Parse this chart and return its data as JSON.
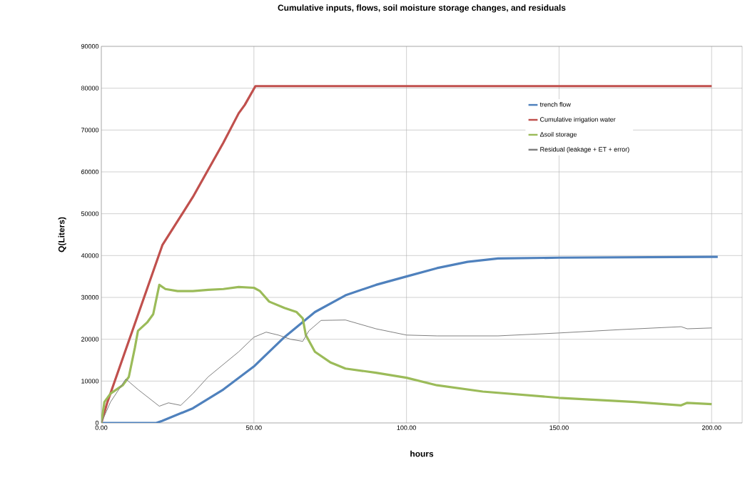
{
  "chart_data": {
    "type": "line",
    "title": "Cumulative inputs, flows, soil moisture storage changes, and residuals",
    "xlabel": "hours",
    "ylabel": "Q(Liters)",
    "xlim": [
      0,
      210
    ],
    "ylim": [
      0,
      90000
    ],
    "xticks": [
      {
        "value": 0,
        "label": "0.00"
      },
      {
        "value": 50,
        "label": "50.00"
      },
      {
        "value": 100,
        "label": "100.00"
      },
      {
        "value": 150,
        "label": "150.00"
      },
      {
        "value": 200,
        "label": "200.00"
      }
    ],
    "yticks": [
      0,
      10000,
      20000,
      30000,
      40000,
      50000,
      60000,
      70000,
      80000,
      90000
    ],
    "grid": true,
    "legend": "top right",
    "marker": "none",
    "line_style": "solid",
    "series": [
      {
        "name": "trench flow",
        "color": "#4f81bd",
        "x": [
          0,
          18,
          20,
          30,
          40,
          50,
          60,
          70,
          80,
          90,
          100,
          110,
          120,
          130,
          150,
          200,
          202
        ],
        "values": [
          0,
          0,
          500,
          3500,
          8000,
          13500,
          20500,
          26500,
          30500,
          33000,
          35000,
          37000,
          38500,
          39300,
          39500,
          39700,
          39700
        ]
      },
      {
        "name": "Cumulative irrigation water",
        "color": "#c0504d",
        "x": [
          0,
          2,
          20,
          30,
          40,
          45,
          47,
          50.5,
          200
        ],
        "values": [
          0,
          5000,
          42500,
          54000,
          67000,
          74000,
          76000,
          80500,
          80500
        ]
      },
      {
        "name": "Δsoil storage",
        "color": "#9bbb59",
        "x": [
          0,
          1,
          3,
          7,
          9,
          11,
          12,
          15,
          17,
          19,
          21,
          25,
          30,
          35,
          40,
          45,
          50,
          52,
          55,
          60,
          64,
          66,
          67,
          70,
          75,
          80,
          90,
          100,
          110,
          125,
          150,
          175,
          190,
          192,
          200
        ],
        "values": [
          0,
          5000,
          7000,
          9000,
          11000,
          18000,
          22000,
          24000,
          26000,
          33000,
          32000,
          31500,
          31500,
          31800,
          32000,
          32500,
          32300,
          31500,
          29000,
          27500,
          26500,
          25000,
          21000,
          17000,
          14500,
          13000,
          12000,
          10800,
          9000,
          7500,
          6000,
          5000,
          4200,
          4800,
          4500
        ]
      },
      {
        "name": "Residual (leakage + ET + error)",
        "color": "#7f7f7f",
        "x": [
          0,
          3,
          8,
          12,
          19,
          22,
          26,
          30,
          35,
          40,
          45,
          50,
          54,
          58,
          62,
          66,
          68,
          72,
          80,
          90,
          100,
          110,
          130,
          150,
          170,
          190,
          192,
          200
        ],
        "values": [
          0,
          5000,
          10500,
          8000,
          4000,
          4800,
          4200,
          7000,
          11000,
          14000,
          17000,
          20500,
          21700,
          21000,
          20000,
          19500,
          22000,
          24500,
          24600,
          22500,
          21000,
          20800,
          20800,
          21500,
          22300,
          23000,
          22500,
          22700
        ]
      }
    ]
  }
}
